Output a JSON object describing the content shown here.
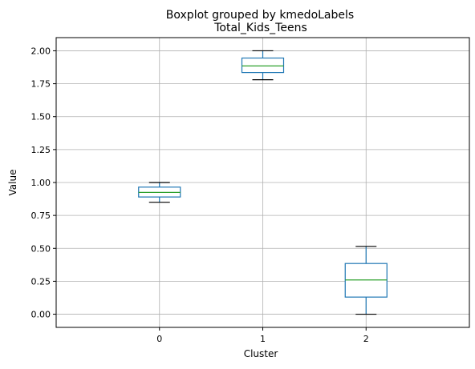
{
  "chart_data": {
    "type": "box",
    "suptitle": "Boxplot grouped by kmedoLabels",
    "title": "Total_Kids_Teens",
    "xlabel": "Cluster",
    "ylabel": "Value",
    "categories": [
      "0",
      "1",
      "2"
    ],
    "ylim": [
      -0.1,
      2.1
    ],
    "yticks": [
      0.0,
      0.25,
      0.5,
      0.75,
      1.0,
      1.25,
      1.5,
      1.75,
      2.0
    ],
    "ytick_labels": [
      "0.00",
      "0.25",
      "0.50",
      "0.75",
      "1.00",
      "1.25",
      "1.50",
      "1.75",
      "2.00"
    ],
    "grid": true,
    "boxes": [
      {
        "category": "0",
        "whisker_low": 0.85,
        "q1": 0.89,
        "median": 0.925,
        "q3": 0.965,
        "whisker_high": 1.0
      },
      {
        "category": "1",
        "whisker_low": 1.78,
        "q1": 1.835,
        "median": 1.885,
        "q3": 1.945,
        "whisker_high": 2.0
      },
      {
        "category": "2",
        "whisker_low": 0.0,
        "q1": 0.13,
        "median": 0.26,
        "q3": 0.385,
        "whisker_high": 0.515
      }
    ],
    "colors": {
      "box": "#1f77b4",
      "median": "#2ca02c",
      "whisker": "#1f77b4",
      "cap": "#000000",
      "grid": "#b0b0b0"
    }
  }
}
